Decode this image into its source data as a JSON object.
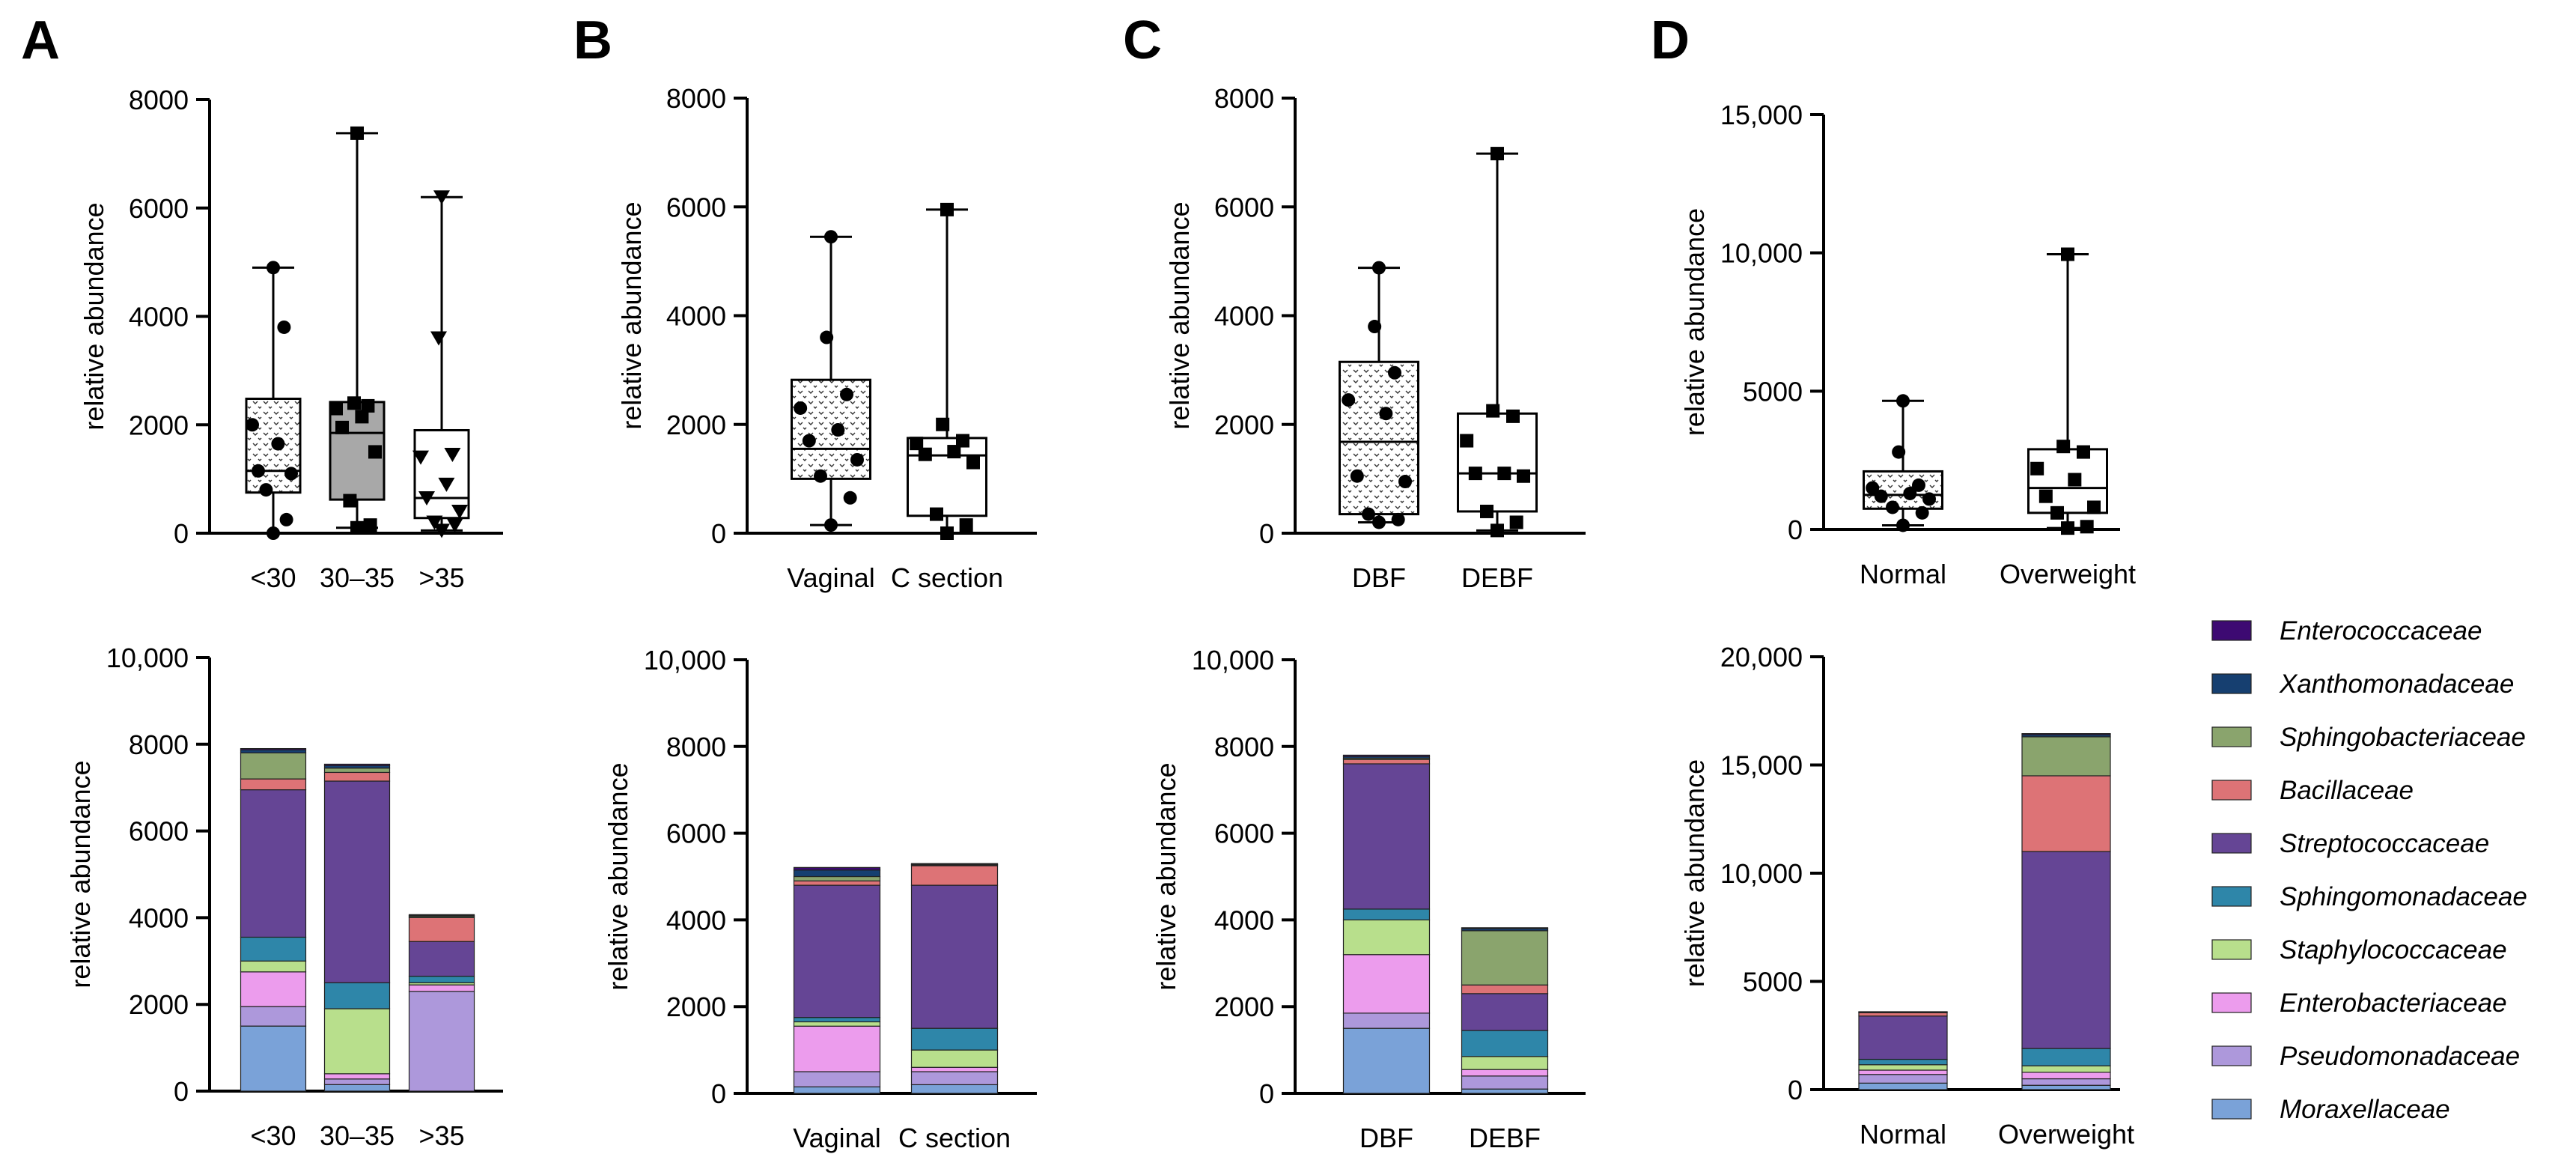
{
  "colors": {
    "Enterococcaceae": "#3d0a72",
    "Xanthomonadaceae": "#163f70",
    "Sphingobacteriaceae": "#8aa46d",
    "Bacillaceae": "#dd7376",
    "Streptococcaceae": "#654595",
    "Sphingomonadaceae": "#2e86a9",
    "Staphylococcaceae": "#b8df8c",
    "Enterobacteriaceae": "#ec9ced",
    "Pseudomonadaceae": "#ad98db",
    "Moraxellaceae": "#7aa2d8"
  },
  "legend": {
    "items": [
      "Enterococcaceae",
      "Xanthomonadaceae",
      "Sphingobacteriaceae",
      "Bacillaceae",
      "Streptococcaceae",
      "Sphingomonadaceae",
      "Staphylococcaceae",
      "Enterobacteriaceae",
      "Pseudomonadaceae",
      "Moraxellaceae"
    ]
  },
  "chart_data": [
    {
      "panel": "A",
      "type": "box",
      "ylabel": "relative abundance",
      "ylim": [
        0,
        8000
      ],
      "yticks": [
        0,
        2000,
        4000,
        6000,
        8000
      ],
      "ytick_labels": [
        "0",
        "2000",
        "4000",
        "6000",
        "8000"
      ],
      "categories": [
        "<30",
        "30–35",
        ">35"
      ],
      "boxes": [
        {
          "min": 0,
          "q1": 750,
          "median": 1150,
          "q3": 2480,
          "max": 4900,
          "fill": "dots",
          "marker": "circle",
          "points": [
            0,
            250,
            800,
            1100,
            1150,
            1650,
            2000,
            3800,
            4900
          ]
        },
        {
          "min": 100,
          "q1": 620,
          "median": 1850,
          "q3": 2420,
          "max": 7380,
          "fill": "gray",
          "marker": "square",
          "points": [
            100,
            150,
            600,
            1500,
            1950,
            2150,
            2300,
            2350,
            2400,
            7380
          ]
        },
        {
          "min": 50,
          "q1": 280,
          "median": 650,
          "q3": 1900,
          "max": 6200,
          "fill": "white",
          "marker": "triangle",
          "points": [
            50,
            150,
            200,
            400,
            650,
            900,
            1400,
            1450,
            3600,
            6200
          ]
        }
      ]
    },
    {
      "panel": "B",
      "type": "box",
      "ylabel": "relative abundance",
      "ylim": [
        0,
        8000
      ],
      "yticks": [
        0,
        2000,
        4000,
        6000,
        8000
      ],
      "ytick_labels": [
        "0",
        "2000",
        "4000",
        "6000",
        "8000"
      ],
      "categories": [
        "Vaginal",
        "C section"
      ],
      "boxes": [
        {
          "min": 150,
          "q1": 1000,
          "median": 1550,
          "q3": 2820,
          "max": 5450,
          "fill": "dots",
          "marker": "circle",
          "points": [
            150,
            650,
            1050,
            1350,
            1700,
            1900,
            2300,
            2550,
            3600,
            5450
          ]
        },
        {
          "min": 0,
          "q1": 320,
          "median": 1430,
          "q3": 1750,
          "max": 5950,
          "fill": "white",
          "marker": "square",
          "points": [
            0,
            150,
            350,
            1300,
            1450,
            1500,
            1650,
            1700,
            2000,
            5950
          ]
        }
      ]
    },
    {
      "panel": "C",
      "type": "box",
      "ylabel": "relative abundance",
      "ylim": [
        0,
        8000
      ],
      "yticks": [
        0,
        2000,
        4000,
        6000,
        8000
      ],
      "ytick_labels": [
        "0",
        "2000",
        "4000",
        "6000",
        "8000"
      ],
      "categories": [
        "DBF",
        "DEBF"
      ],
      "boxes": [
        {
          "min": 200,
          "q1": 350,
          "median": 1680,
          "q3": 3150,
          "max": 4880,
          "fill": "dots",
          "marker": "circle",
          "points": [
            200,
            250,
            350,
            950,
            1050,
            2200,
            2450,
            2950,
            3800,
            4880
          ]
        },
        {
          "min": 50,
          "q1": 400,
          "median": 1100,
          "q3": 2200,
          "max": 6980,
          "fill": "white",
          "marker": "square",
          "points": [
            50,
            200,
            400,
            1050,
            1100,
            1100,
            1700,
            2150,
            2250,
            6980
          ]
        }
      ]
    },
    {
      "panel": "D",
      "type": "box",
      "ylabel": "relative abundance",
      "ylim": [
        0,
        15000
      ],
      "yticks": [
        0,
        5000,
        10000,
        15000
      ],
      "ytick_labels": [
        "0",
        "5000",
        "10,000",
        "15,000"
      ],
      "categories": [
        "Normal",
        "Overweight"
      ],
      "boxes": [
        {
          "min": 150,
          "q1": 750,
          "median": 1250,
          "q3": 2100,
          "max": 4650,
          "fill": "dots",
          "marker": "circle",
          "points": [
            150,
            600,
            800,
            1100,
            1200,
            1300,
            1500,
            1600,
            2800,
            4650
          ]
        },
        {
          "min": 50,
          "q1": 600,
          "median": 1500,
          "q3": 2900,
          "max": 9950,
          "fill": "white",
          "marker": "square",
          "points": [
            50,
            100,
            600,
            800,
            1200,
            1800,
            2200,
            2800,
            3000,
            9950
          ]
        }
      ]
    },
    {
      "panel": "A",
      "type": "bar",
      "stacked": true,
      "ylabel": "relative abundance",
      "ylim": [
        0,
        10000
      ],
      "yticks": [
        0,
        2000,
        4000,
        6000,
        8000,
        10000
      ],
      "ytick_labels": [
        "0",
        "2000",
        "4000",
        "6000",
        "8000",
        "10,000"
      ],
      "categories": [
        "<30",
        "30–35",
        ">35"
      ],
      "series": [
        {
          "name": "Moraxellaceae",
          "values": [
            1500,
            150,
            0
          ]
        },
        {
          "name": "Pseudomonadaceae",
          "values": [
            450,
            130,
            2300
          ]
        },
        {
          "name": "Enterobacteriaceae",
          "values": [
            800,
            120,
            150
          ]
        },
        {
          "name": "Staphylococcaceae",
          "values": [
            250,
            1500,
            50
          ]
        },
        {
          "name": "Sphingomonadaceae",
          "values": [
            550,
            600,
            150
          ]
        },
        {
          "name": "Streptococcaceae",
          "values": [
            3400,
            4650,
            800
          ]
        },
        {
          "name": "Bacillaceae",
          "values": [
            250,
            200,
            550
          ]
        },
        {
          "name": "Sphingobacteriaceae",
          "values": [
            600,
            100,
            30
          ]
        },
        {
          "name": "Xanthomonadaceae",
          "values": [
            70,
            60,
            20
          ]
        },
        {
          "name": "Enterococcaceae",
          "values": [
            30,
            30,
            20
          ]
        }
      ]
    },
    {
      "panel": "B",
      "type": "bar",
      "stacked": true,
      "ylabel": "relative abundance",
      "ylim": [
        0,
        10000
      ],
      "yticks": [
        0,
        2000,
        4000,
        6000,
        8000,
        10000
      ],
      "ytick_labels": [
        "0",
        "2000",
        "4000",
        "6000",
        "8000",
        "10,000"
      ],
      "categories": [
        "Vaginal",
        "C section"
      ],
      "series": [
        {
          "name": "Moraxellaceae",
          "values": [
            150,
            200
          ]
        },
        {
          "name": "Pseudomonadaceae",
          "values": [
            350,
            300
          ]
        },
        {
          "name": "Enterobacteriaceae",
          "values": [
            1050,
            100
          ]
        },
        {
          "name": "Staphylococcaceae",
          "values": [
            100,
            400
          ]
        },
        {
          "name": "Sphingomonadaceae",
          "values": [
            100,
            500
          ]
        },
        {
          "name": "Streptococcaceae",
          "values": [
            3050,
            3300
          ]
        },
        {
          "name": "Bacillaceae",
          "values": [
            100,
            450
          ]
        },
        {
          "name": "Sphingobacteriaceae",
          "values": [
            100,
            20
          ]
        },
        {
          "name": "Xanthomonadaceae",
          "values": [
            150,
            15
          ]
        },
        {
          "name": "Enterococcaceae",
          "values": [
            60,
            15
          ]
        }
      ]
    },
    {
      "panel": "C",
      "type": "bar",
      "stacked": true,
      "ylabel": "relative abundance",
      "ylim": [
        0,
        10000
      ],
      "yticks": [
        0,
        2000,
        4000,
        6000,
        8000,
        10000
      ],
      "ytick_labels": [
        "0",
        "2000",
        "4000",
        "6000",
        "8000",
        "10,000"
      ],
      "categories": [
        "DBF",
        "DEBF"
      ],
      "series": [
        {
          "name": "Moraxellaceae",
          "values": [
            1500,
            100
          ]
        },
        {
          "name": "Pseudomonadaceae",
          "values": [
            350,
            300
          ]
        },
        {
          "name": "Enterobacteriaceae",
          "values": [
            1350,
            150
          ]
        },
        {
          "name": "Staphylococcaceae",
          "values": [
            800,
            300
          ]
        },
        {
          "name": "Sphingomonadaceae",
          "values": [
            250,
            600
          ]
        },
        {
          "name": "Streptococcaceae",
          "values": [
            3350,
            850
          ]
        },
        {
          "name": "Bacillaceae",
          "values": [
            100,
            200
          ]
        },
        {
          "name": "Sphingobacteriaceae",
          "values": [
            30,
            1250
          ]
        },
        {
          "name": "Xanthomonadaceae",
          "values": [
            40,
            50
          ]
        },
        {
          "name": "Enterococcaceae",
          "values": [
            30,
            20
          ]
        }
      ]
    },
    {
      "panel": "D",
      "type": "bar",
      "stacked": true,
      "ylabel": "relative abundance",
      "ylim": [
        0,
        20000
      ],
      "yticks": [
        0,
        5000,
        10000,
        15000,
        20000
      ],
      "ytick_labels": [
        "0",
        "5000",
        "10,000",
        "15,000",
        "20,000"
      ],
      "categories": [
        "Normal",
        "Overweight"
      ],
      "series": [
        {
          "name": "Moraxellaceae",
          "values": [
            300,
            200
          ]
        },
        {
          "name": "Pseudomonadaceae",
          "values": [
            400,
            300
          ]
        },
        {
          "name": "Enterobacteriaceae",
          "values": [
            200,
            300
          ]
        },
        {
          "name": "Staphylococcaceae",
          "values": [
            250,
            300
          ]
        },
        {
          "name": "Sphingomonadaceae",
          "values": [
            250,
            800
          ]
        },
        {
          "name": "Streptococcaceae",
          "values": [
            2000,
            9100
          ]
        },
        {
          "name": "Bacillaceae",
          "values": [
            150,
            3500
          ]
        },
        {
          "name": "Sphingobacteriaceae",
          "values": [
            20,
            1800
          ]
        },
        {
          "name": "Xanthomonadaceae",
          "values": [
            15,
            100
          ]
        },
        {
          "name": "Enterococcaceae",
          "values": [
            15,
            50
          ]
        }
      ]
    }
  ],
  "panels": [
    {
      "letter": "A"
    },
    {
      "letter": "B"
    },
    {
      "letter": "C"
    },
    {
      "letter": "D"
    }
  ]
}
